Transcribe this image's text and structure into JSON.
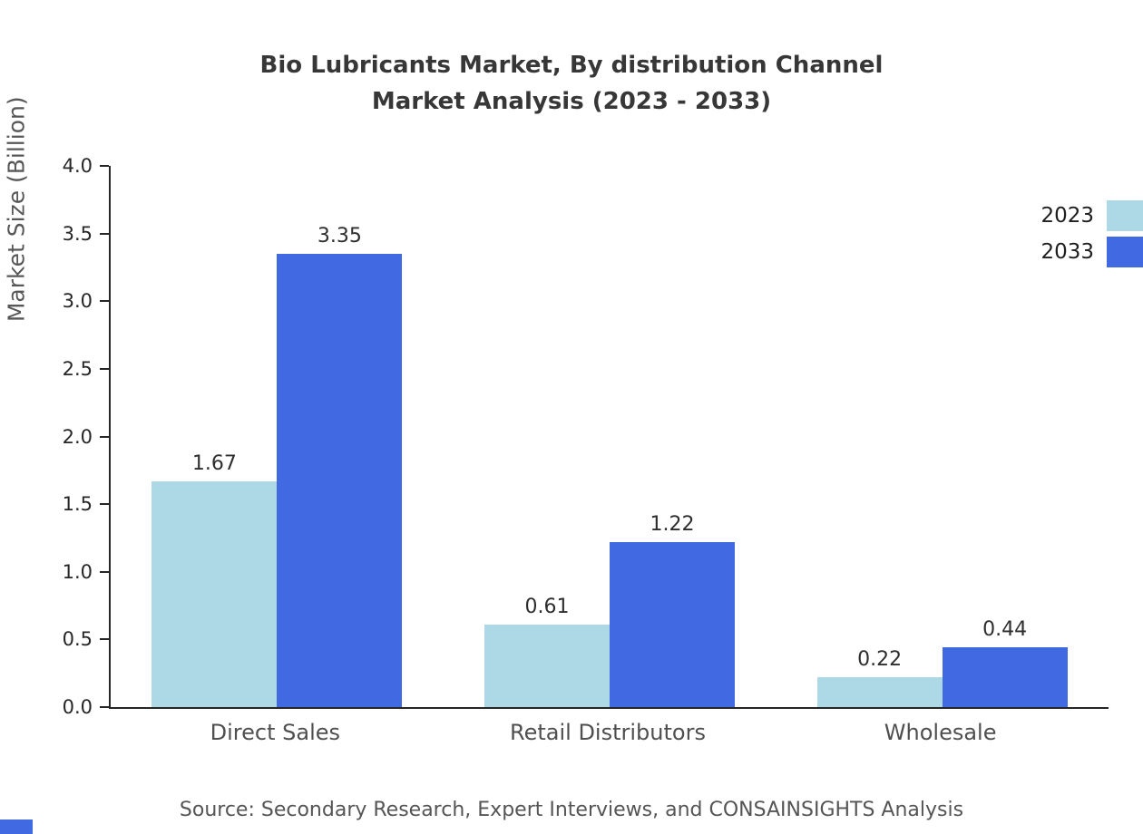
{
  "title": {
    "line1": "Bio Lubricants Market, By distribution Channel",
    "line2": "Market Analysis (2023 - 2033)"
  },
  "source": "Source: Secondary Research, Expert Interviews, and CONSAINSIGHTS Analysis",
  "accent_color": "#4169e1",
  "chart_data": {
    "type": "bar",
    "title": "Bio Lubricants Market, By distribution Channel Market Analysis (2023 - 2033)",
    "categories": [
      "Direct Sales",
      "Retail Distributors",
      "Wholesale"
    ],
    "series": [
      {
        "name": "2023",
        "color": "#add8e6",
        "values": [
          1.67,
          0.61,
          0.22
        ]
      },
      {
        "name": "2033",
        "color": "#4169e1",
        "values": [
          3.35,
          1.22,
          0.44
        ]
      }
    ],
    "xlabel": "",
    "ylabel": "Market Size (Billion)",
    "ylim": [
      0,
      4
    ],
    "yticks": [
      0.0,
      0.5,
      1.0,
      1.5,
      2.0,
      2.5,
      3.0,
      3.5,
      4.0
    ],
    "grid": false,
    "legend_position": "right",
    "value_labels": true
  }
}
